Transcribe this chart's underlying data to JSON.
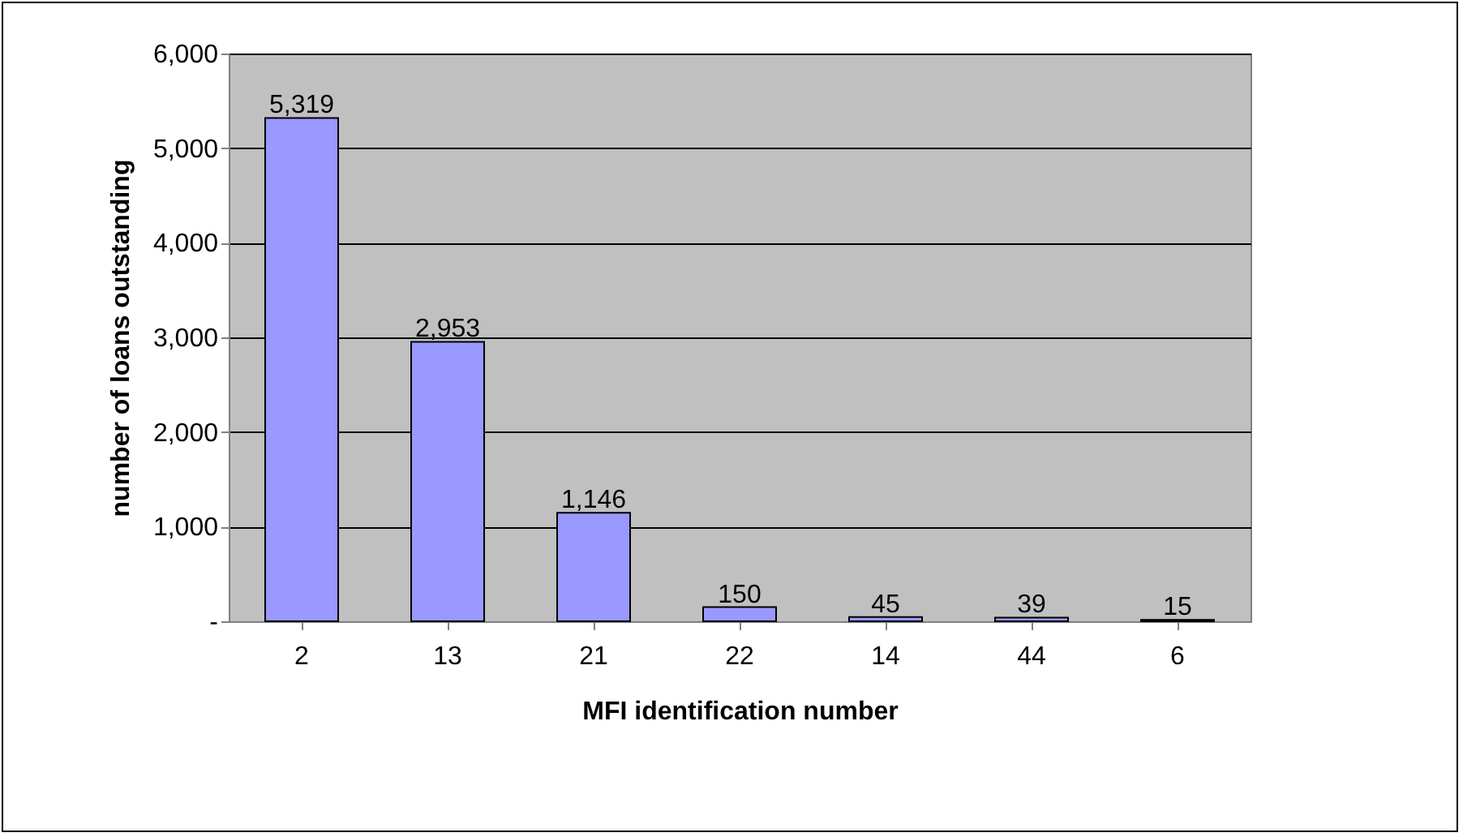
{
  "chart_data": {
    "type": "bar",
    "xlabel": "MFI identification number",
    "ylabel": "number of loans outstanding",
    "categories": [
      "2",
      "13",
      "21",
      "22",
      "14",
      "44",
      "6"
    ],
    "values": [
      5319,
      2953,
      1146,
      150,
      45,
      39,
      15
    ],
    "color": "#9999ff",
    "ylim": [
      0,
      6000
    ],
    "yticks": [
      {
        "value": 0,
        "label": "-"
      },
      {
        "value": 1000,
        "label": "1,000"
      },
      {
        "value": 2000,
        "label": "2,000"
      },
      {
        "value": 3000,
        "label": "3,000"
      },
      {
        "value": 4000,
        "label": "4,000"
      },
      {
        "value": 5000,
        "label": "5,000"
      },
      {
        "value": 6000,
        "label": "6,000"
      }
    ],
    "value_labels": [
      "5,319",
      "2,953",
      "1,146",
      "150",
      "45",
      "39",
      "15"
    ],
    "grid": "y"
  }
}
